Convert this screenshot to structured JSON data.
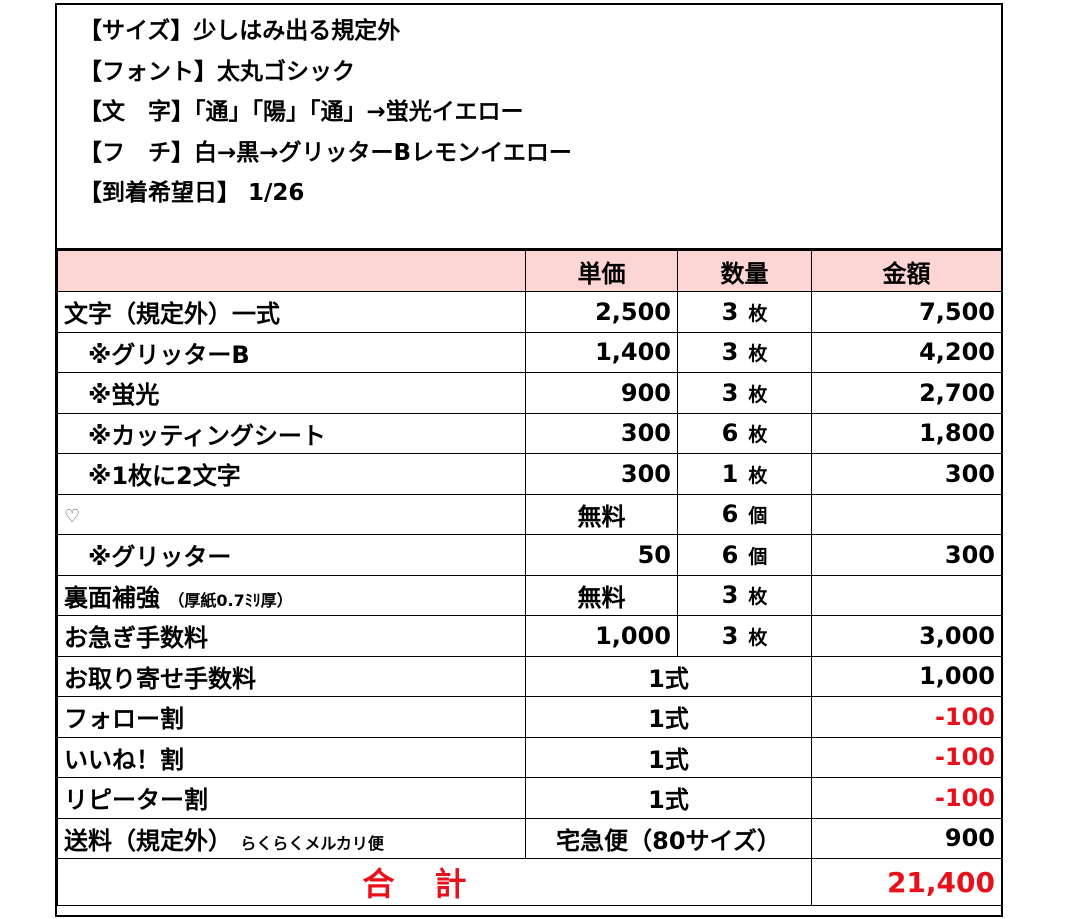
{
  "notes": [
    "【サイズ】少しはみ出る規定外",
    "【フォント】太丸ゴシック",
    "【文　字】「通」「陽」「通」→蛍光イエロー",
    "【フ　チ】白→黒→グリッターBレモンイエロー",
    "【到着希望日】 1/26"
  ],
  "header": {
    "item": "",
    "unit_price": "単価",
    "quantity": "数量",
    "amount": "金額"
  },
  "rows": [
    {
      "item": "文字（規定外）一式",
      "price": "2,500",
      "qty": "3",
      "unit": "枚",
      "amount": "7,500"
    },
    {
      "item": "※グリッターB",
      "price": "1,400",
      "qty": "3",
      "unit": "枚",
      "amount": "4,200"
    },
    {
      "item": "※蛍光",
      "price": "900",
      "qty": "3",
      "unit": "枚",
      "amount": "2,700"
    },
    {
      "item": "※カッティングシート",
      "price": "300",
      "qty": "6",
      "unit": "枚",
      "amount": "1,800"
    },
    {
      "item": "※1枚に2文字",
      "price": "300",
      "qty": "1",
      "unit": "枚",
      "amount": "300"
    },
    {
      "item": "♡",
      "price": "無料",
      "qty": "6",
      "unit": "個",
      "amount": ""
    },
    {
      "item": "※グリッター",
      "price": "50",
      "qty": "6",
      "unit": "個",
      "amount": "300"
    },
    {
      "item": "裏面補強",
      "item_note": "（厚紙0.7ﾐﾘ厚）",
      "price": "無料",
      "qty": "3",
      "unit": "枚",
      "amount": ""
    },
    {
      "item": "お急ぎ手数料",
      "price": "1,000",
      "qty": "3",
      "unit": "枚",
      "amount": "3,000"
    },
    {
      "item": "お取り寄せ手数料",
      "merged": "1式",
      "amount": "1,000"
    },
    {
      "item": "フォロー割",
      "merged": "1式",
      "amount": "-100"
    },
    {
      "item": "いいね！割",
      "merged": "1式",
      "amount": "-100"
    },
    {
      "item": "リピーター割",
      "merged": "1式",
      "amount": "-100"
    },
    {
      "item": "送料（規定外）",
      "item_note": "らくらくメルカリ便",
      "merged": "宅急便（80サイズ）",
      "amount": "900"
    }
  ],
  "total": {
    "label": "合計",
    "amount": "21,400"
  },
  "colors": {
    "header_bg": "#fcd5d4",
    "negative": "#e8101a",
    "total": "#e8101a"
  }
}
